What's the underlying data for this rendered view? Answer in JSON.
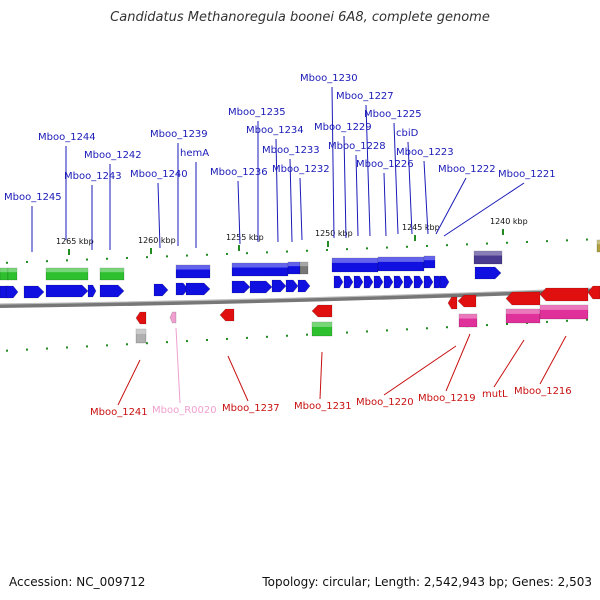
{
  "title": "Candidatus Methanoregula boonei 6A8, complete genome",
  "footer": {
    "accession": "Accession: NC_009712",
    "summary": "Topology: circular; Length: 2,542,943 bp; Genes: 2,503"
  },
  "colors": {
    "forward_cds": "#1010e0",
    "forward_dark": "#4a3a90",
    "rrna_green": "#2ec02e",
    "reverse_cds": "#e01010",
    "reverse_pink": "#e0309a",
    "trna": "#f0a0d0",
    "backbone": "#888888",
    "tick": "#228b22",
    "top_label": "#1a1ab8",
    "bottom_label": "#c81010"
  },
  "scale_labels": [
    "1265 kbp",
    "1260 kbp",
    "1255 kbp",
    "1250 kbp",
    "1245 kbp",
    "1240 kbp"
  ],
  "top_labels": [
    "Mboo_1245",
    "Mboo_1244",
    "Mboo_1243",
    "Mboo_1242",
    "Mboo_1240",
    "Mboo_1239",
    "hemA",
    "Mboo_1236",
    "Mboo_1235",
    "Mboo_1234",
    "Mboo_1233",
    "Mboo_1232",
    "Mboo_1230",
    "Mboo_1229",
    "Mboo_1228",
    "Mboo_1227",
    "Mboo_1226",
    "Mboo_1225",
    "cbiD",
    "Mboo_1223",
    "Mboo_1222",
    "Mboo_1221"
  ],
  "bottom_labels": [
    "Mboo_1241",
    "Mboo_R0020",
    "Mboo_1237",
    "Mboo_1231",
    "Mboo_1220",
    "Mboo_1219",
    "mutL",
    "Mboo_1216"
  ]
}
